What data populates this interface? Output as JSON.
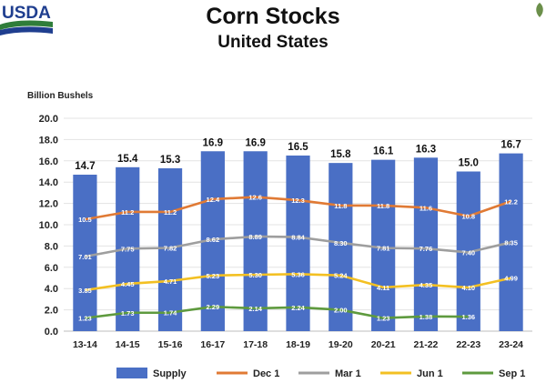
{
  "header": {
    "logo_text": "USDA",
    "title": "Corn Stocks",
    "subtitle": "United States"
  },
  "colors": {
    "supply": "#4a6fc5",
    "dec1": "#e07a35",
    "mar1": "#9e9e9e",
    "jun1": "#f3c022",
    "sep1": "#5e9a3e",
    "logo_blue": "#1f3e8f",
    "logo_green": "#2f7d3a"
  },
  "chart_data": {
    "type": "bar",
    "title": "Corn Stocks",
    "subtitle": "United States",
    "ylabel": "Billion Bushels",
    "xlabel": "",
    "ylim": [
      0,
      20
    ],
    "y_ticks": [
      "0.0",
      "2.0",
      "4.0",
      "6.0",
      "8.0",
      "10.0",
      "12.0",
      "14.0",
      "16.0",
      "18.0",
      "20.0"
    ],
    "grid": true,
    "legend_position": "bottom",
    "categories": [
      "13-14",
      "14-15",
      "15-16",
      "16-17",
      "17-18",
      "18-19",
      "19-20",
      "20-21",
      "21-22",
      "22-23",
      "23-24"
    ],
    "series": [
      {
        "name": "Supply",
        "type": "bar",
        "values": [
          14.7,
          15.4,
          15.3,
          16.9,
          16.9,
          16.5,
          15.8,
          16.1,
          16.3,
          15.0,
          16.7
        ],
        "labels": [
          "14.7",
          "15.4",
          "15.3",
          "16.9",
          "16.9",
          "16.5",
          "15.8",
          "16.1",
          "16.3",
          "15.0",
          "16.7"
        ]
      },
      {
        "name": "Dec 1",
        "type": "line",
        "values": [
          10.5,
          11.2,
          11.2,
          12.4,
          12.6,
          12.3,
          11.8,
          11.8,
          11.6,
          10.8,
          12.2
        ],
        "labels": [
          "10.5",
          "11.2",
          "11.2",
          "12.4",
          "12.6",
          "12.3",
          "11.8",
          "11.8",
          "11.6",
          "10.8",
          "12.2"
        ]
      },
      {
        "name": "Mar 1",
        "type": "line",
        "values": [
          7.01,
          7.75,
          7.82,
          8.62,
          8.89,
          8.84,
          8.3,
          7.81,
          7.76,
          7.4,
          8.35
        ],
        "labels": [
          "7.01",
          "7.75",
          "7.82",
          "8.62",
          "8.89",
          "8.84",
          "8.30",
          "7.81",
          "7.76",
          "7.40",
          "8.35"
        ]
      },
      {
        "name": "Jun 1",
        "type": "line",
        "values": [
          3.85,
          4.45,
          4.71,
          5.23,
          5.3,
          5.36,
          5.24,
          4.11,
          4.35,
          4.1,
          4.99
        ],
        "labels": [
          "3.85",
          "4.45",
          "4.71",
          "5.23",
          "5.30",
          "5.36",
          "5.24",
          "4.11",
          "4.35",
          "4.10",
          "4.99"
        ]
      },
      {
        "name": "Sep 1",
        "type": "line",
        "values": [
          1.23,
          1.73,
          1.74,
          2.29,
          2.14,
          2.24,
          2.0,
          1.23,
          1.38,
          1.36,
          null
        ],
        "labels": [
          "1.23",
          "1.73",
          "1.74",
          "2.29",
          "2.14",
          "2.24",
          "2.00",
          "1.23",
          "1.38",
          "1.36",
          null
        ]
      }
    ]
  }
}
